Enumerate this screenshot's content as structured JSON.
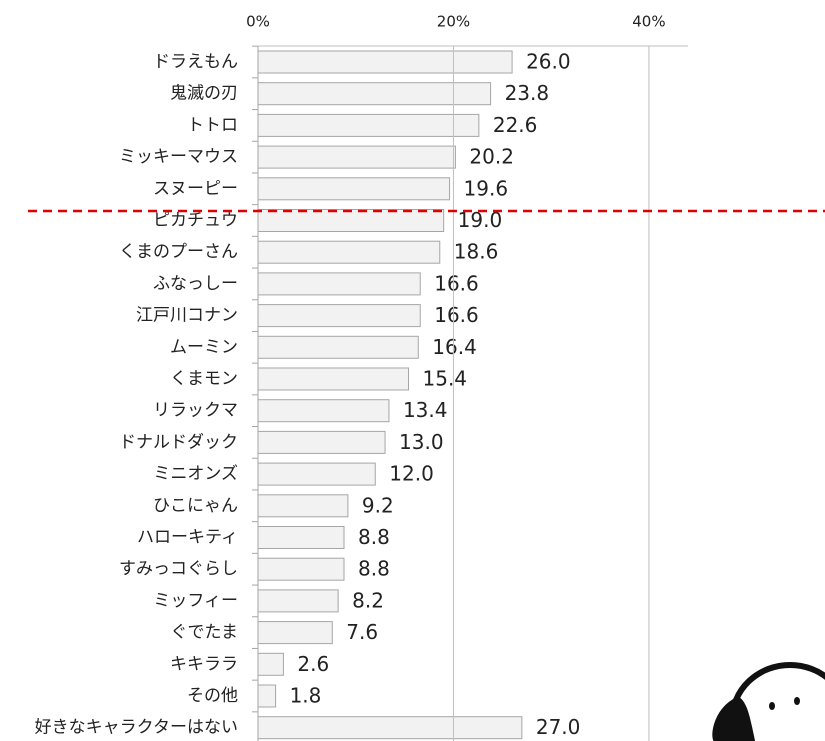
{
  "chart_data": {
    "type": "bar",
    "orientation": "horizontal",
    "categories": [
      "ドラえもん",
      "鬼滅の刃",
      "トトロ",
      "ミッキーマウス",
      "スヌーピー",
      "ピカチュウ",
      "くまのプーさん",
      "ふなっしー",
      "江戸川コナン",
      "ムーミン",
      "くまモン",
      "リラックマ",
      "ドナルドダック",
      "ミニオンズ",
      "ひこにゃん",
      "ハローキティ",
      "すみっコぐらし",
      "ミッフィー",
      "ぐでたま",
      "キキララ",
      "その他",
      "好きなキャラクターはない"
    ],
    "values": [
      26.0,
      23.8,
      22.6,
      20.2,
      19.6,
      19.0,
      18.6,
      16.6,
      16.6,
      16.4,
      15.4,
      13.4,
      13.0,
      12.0,
      9.2,
      8.8,
      8.8,
      8.2,
      7.6,
      2.6,
      1.8,
      27.0
    ],
    "value_labels": [
      "26.0",
      "23.8",
      "22.6",
      "20.2",
      "19.6",
      "19.0",
      "18.6",
      "16.6",
      "16.6",
      "16.4",
      "15.4",
      "13.4",
      "13.0",
      "12.0",
      "9.2",
      "8.8",
      "8.8",
      "8.2",
      "7.6",
      "2.6",
      "1.8",
      "27.0"
    ],
    "color": "#f2f2f2",
    "xlim": [
      0,
      44
    ],
    "xticks": [
      {
        "value": 0,
        "label": "0%"
      },
      {
        "value": 20,
        "label": "20%"
      },
      {
        "value": 40,
        "label": "40%"
      }
    ],
    "grid": true
  }
}
